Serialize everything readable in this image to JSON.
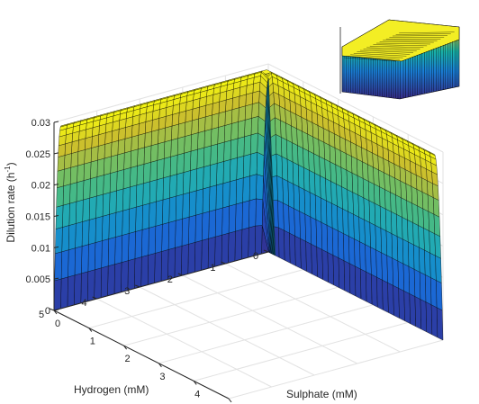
{
  "chart_data": {
    "type": "surface",
    "title": "",
    "xlabel": "Hydrogen (mM)",
    "ylabel": "Sulphate (mM)",
    "zlabel": "Dilution rate (h",
    "zlabel_sup": "-1",
    "zlabel_close": ")",
    "x_ticks": [
      "0",
      "1",
      "2",
      "3",
      "4",
      "5"
    ],
    "y_ticks": [
      "0",
      "1",
      "2",
      "3",
      "4",
      "5"
    ],
    "z_ticks": [
      "0",
      "0.005",
      "0.01",
      "0.015",
      "0.02",
      "0.025",
      "0.03"
    ],
    "xlim": [
      0,
      5
    ],
    "ylim": [
      0,
      5
    ],
    "zlim": [
      0,
      0.03
    ],
    "grid": true,
    "colormap": "parula",
    "surface": {
      "description_values": {
        "plateau_dilution_rate": 0.03,
        "plateau_reached_at_hydrogen_mM": 0.2,
        "plateau_reached_at_sulphate_mM": 0.2,
        "value_at_zero_substrate": 0
      },
      "samples": [
        {
          "hydrogen": 0,
          "sulphate": 0,
          "dilution_rate": 0
        },
        {
          "hydrogen": 0.1,
          "sulphate": 5,
          "dilution_rate": 0.021
        },
        {
          "hydrogen": 0.2,
          "sulphate": 5,
          "dilution_rate": 0.03
        },
        {
          "hydrogen": 5,
          "sulphate": 0.1,
          "dilution_rate": 0.021
        },
        {
          "hydrogen": 5,
          "sulphate": 0.2,
          "dilution_rate": 0.03
        },
        {
          "hydrogen": 5,
          "sulphate": 5,
          "dilution_rate": 0.03
        }
      ]
    },
    "inset": {
      "type": "surface",
      "view": "rotated",
      "description": "same surface seen from another angle"
    }
  },
  "colors": {
    "parula_low": "#352a87",
    "parula_mid": "#1fbaa0",
    "parula_high": "#f9fb0e",
    "axes": "#262626",
    "grid": "#e2e2e2",
    "mesh": "#000000"
  }
}
